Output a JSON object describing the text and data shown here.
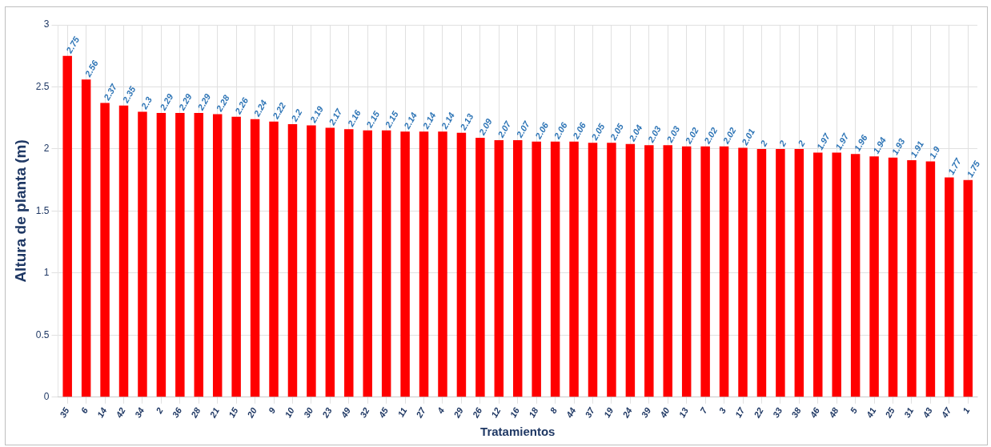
{
  "chart_data": {
    "type": "bar",
    "xlabel": "Tratamientos",
    "ylabel": "Altura de planta (m)",
    "categories": [
      "35",
      "6",
      "14",
      "42",
      "34",
      "2",
      "36",
      "28",
      "21",
      "15",
      "20",
      "9",
      "10",
      "30",
      "23",
      "49",
      "32",
      "45",
      "11",
      "27",
      "4",
      "29",
      "26",
      "12",
      "16",
      "18",
      "8",
      "44",
      "37",
      "19",
      "24",
      "39",
      "40",
      "13",
      "7",
      "3",
      "17",
      "22",
      "33",
      "38",
      "46",
      "48",
      "5",
      "41",
      "25",
      "31",
      "43",
      "47",
      "1"
    ],
    "values": [
      2.75,
      2.56,
      2.37,
      2.35,
      2.3,
      2.29,
      2.29,
      2.29,
      2.28,
      2.26,
      2.24,
      2.22,
      2.2,
      2.19,
      2.17,
      2.16,
      2.15,
      2.15,
      2.14,
      2.14,
      2.14,
      2.13,
      2.09,
      2.07,
      2.07,
      2.06,
      2.06,
      2.06,
      2.05,
      2.05,
      2.04,
      2.03,
      2.03,
      2.02,
      2.02,
      2.02,
      2.01,
      2,
      2,
      2,
      1.97,
      1.97,
      1.96,
      1.94,
      1.93,
      1.91,
      1.9,
      1.77,
      1.75
    ],
    "color": "#ff0000",
    "ylim": [
      0,
      3
    ],
    "yticks": [
      0,
      0.5,
      1,
      1.5,
      2,
      2.5,
      3
    ],
    "grid": true,
    "data_labels": true
  }
}
